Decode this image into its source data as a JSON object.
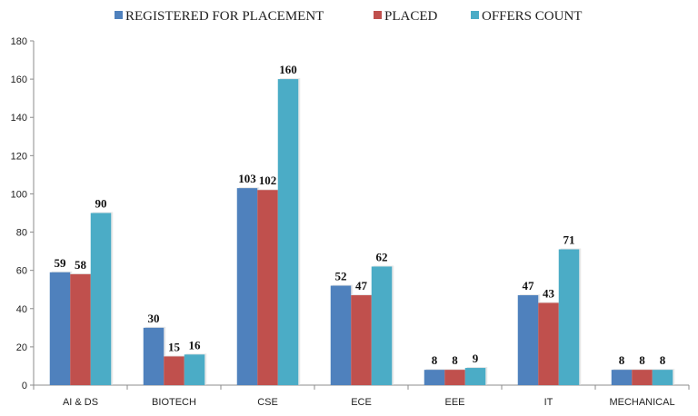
{
  "chart_data": {
    "type": "bar",
    "title": "",
    "xlabel": "",
    "ylabel": "",
    "categories": [
      "AI & DS",
      "BIOTECH",
      "CSE",
      "ECE",
      "EEE",
      "IT",
      "MECHANICAL"
    ],
    "series": [
      {
        "name": "REGISTERED FOR PLACEMENT",
        "color": "#4f81bd",
        "values": [
          59,
          30,
          103,
          52,
          8,
          47,
          8
        ]
      },
      {
        "name": "PLACED",
        "color": "#c0504d",
        "values": [
          58,
          15,
          102,
          47,
          8,
          43,
          8
        ]
      },
      {
        "name": "OFFERS COUNT",
        "color": "#4bacc6",
        "values": [
          90,
          16,
          160,
          62,
          9,
          71,
          8
        ]
      }
    ],
    "ylim": [
      0,
      180
    ],
    "yticks": [
      0,
      20,
      40,
      60,
      80,
      100,
      120,
      140,
      160,
      180
    ],
    "grid": false,
    "legend": "top",
    "data_labels": true
  }
}
